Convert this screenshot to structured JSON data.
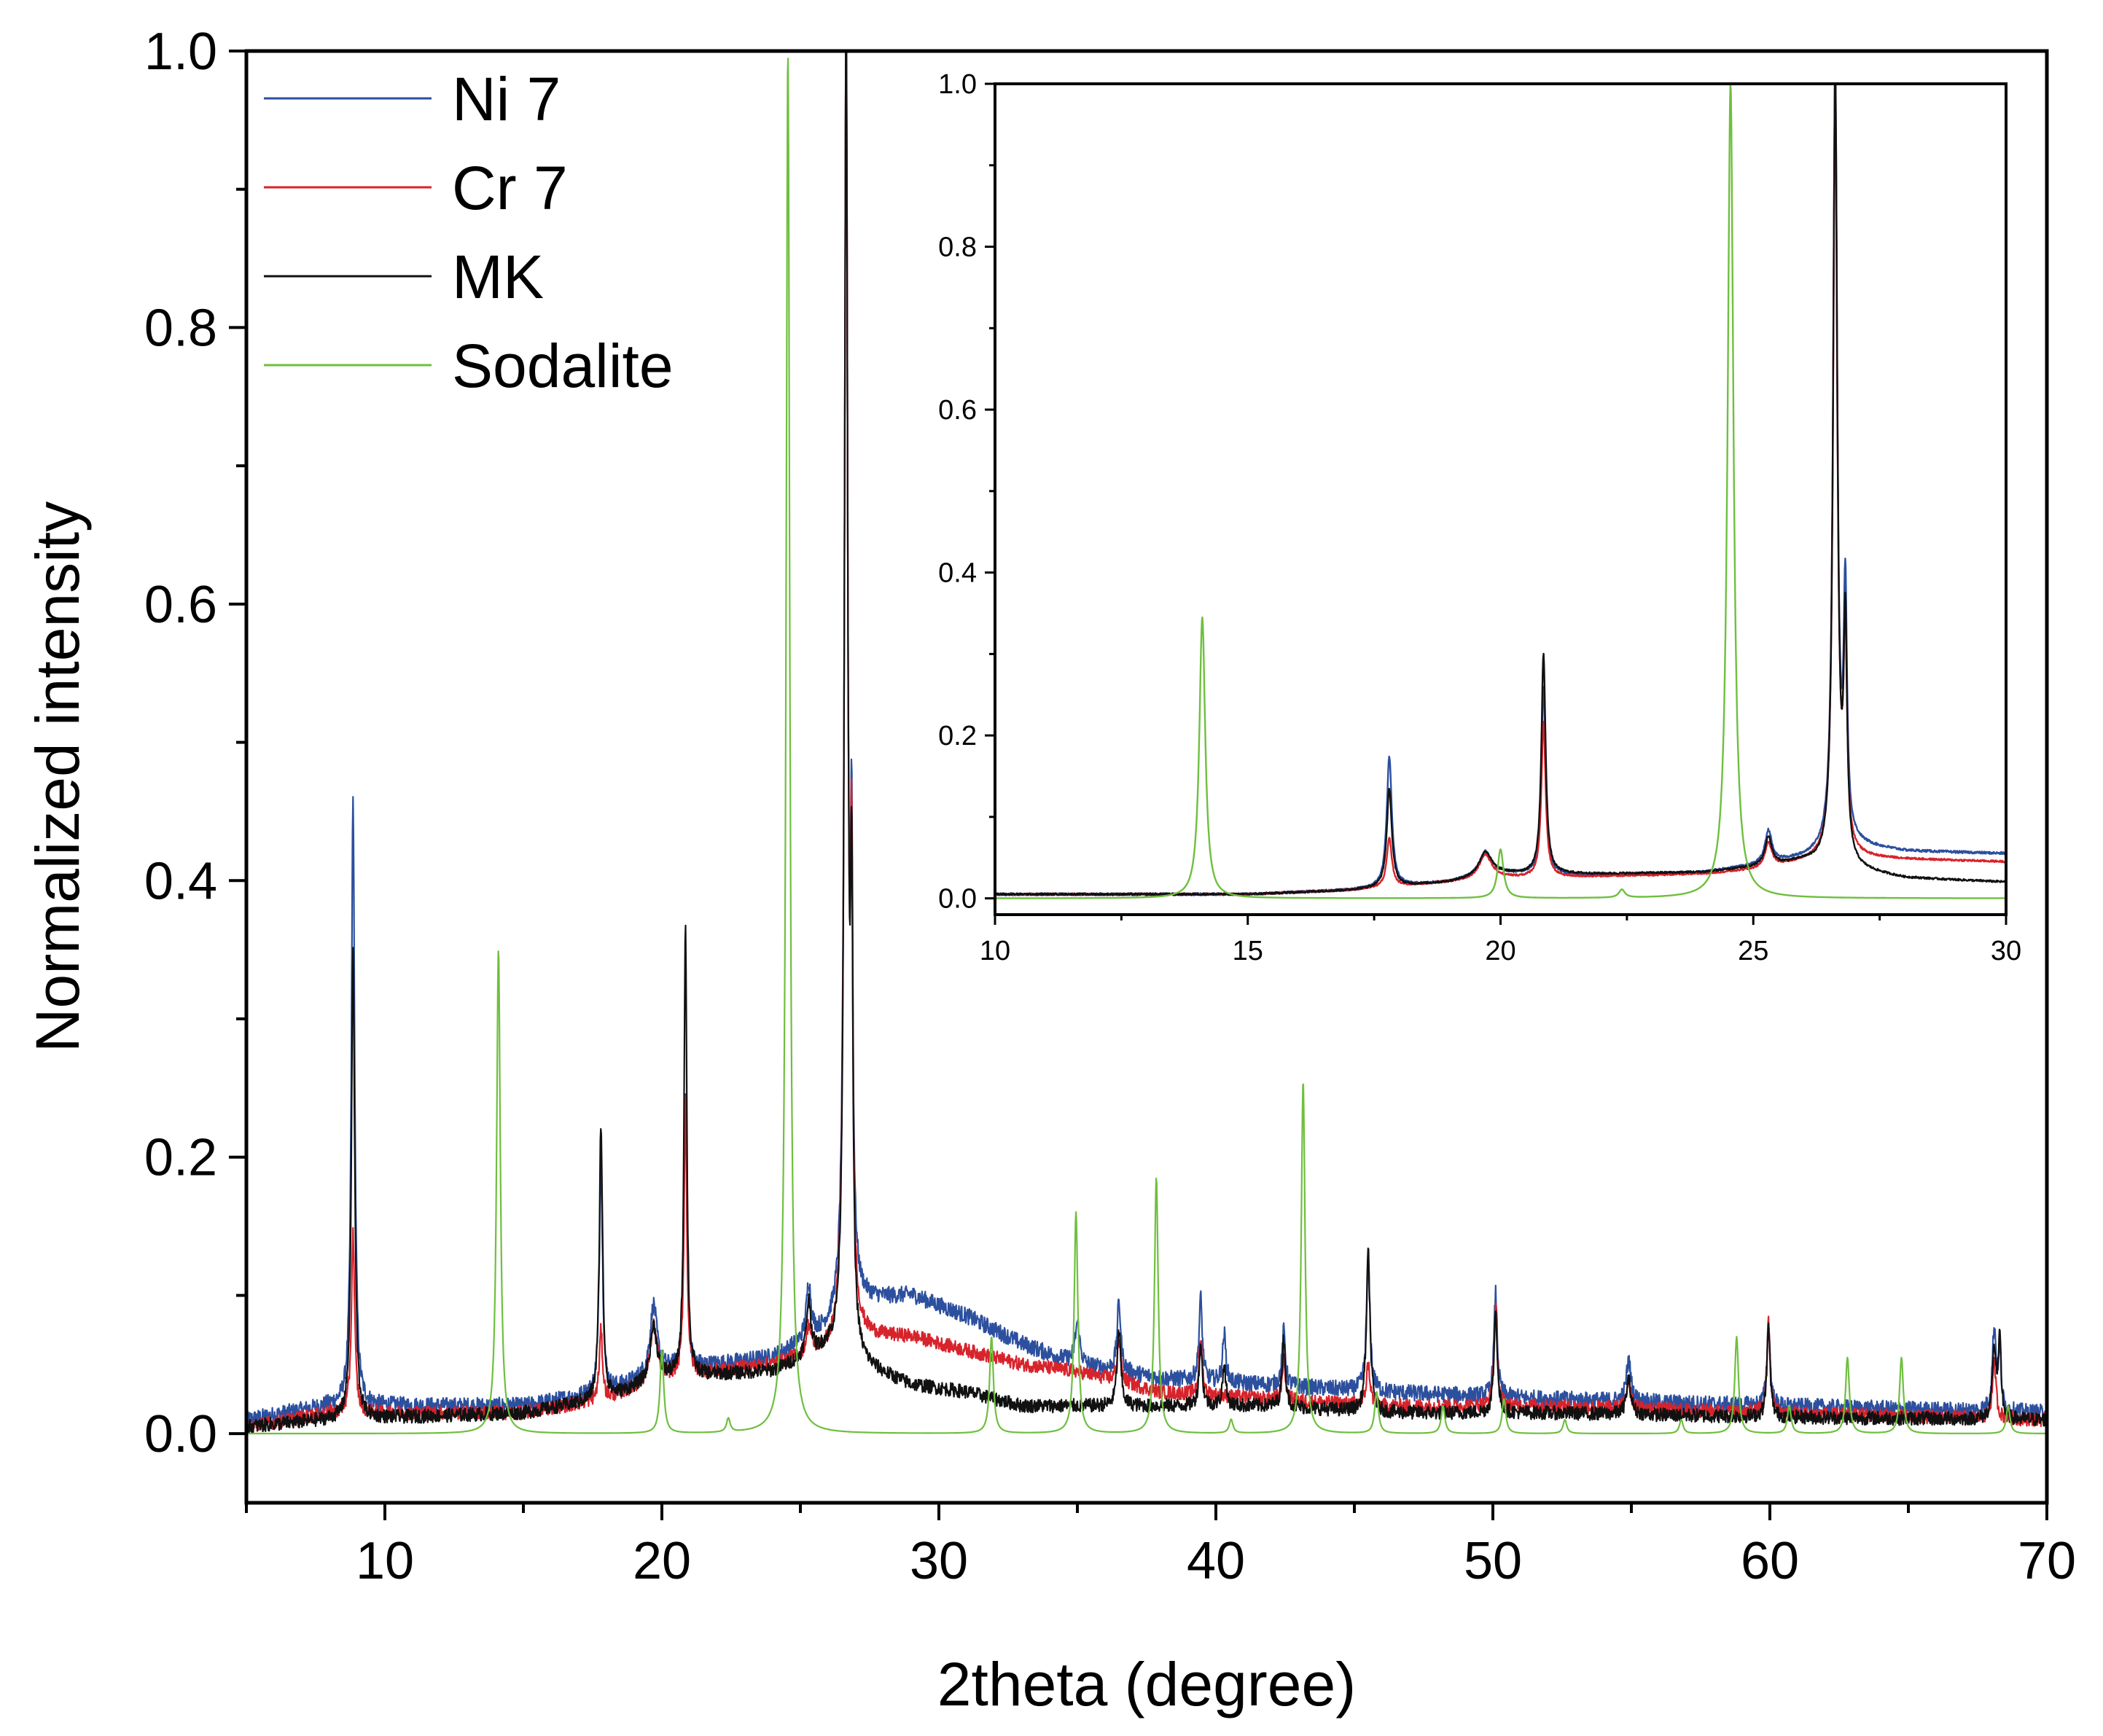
{
  "chart_data": [
    {
      "type": "line",
      "panel": "main",
      "xlabel": "2theta (degree)",
      "ylabel": "Normalized intensity",
      "xlim": [
        5,
        70
      ],
      "ylim": [
        -0.05,
        1.0
      ],
      "x_ticks": [
        "10",
        "20",
        "30",
        "40",
        "50",
        "60",
        "70"
      ],
      "y_ticks": [
        "0.0",
        "0.2",
        "0.4",
        "0.6",
        "0.8",
        "1.0"
      ],
      "legend": {
        "placement": "top-left",
        "entries": [
          {
            "label": "Ni 7",
            "color": "#2c4f9e"
          },
          {
            "label": "Cr 7",
            "color": "#d7232b"
          },
          {
            "label": "MK",
            "color": "#111111"
          },
          {
            "label": "Sodalite",
            "color": "#6fbf3f"
          }
        ]
      },
      "series": [
        {
          "name": "Ni 7",
          "color": "#2c4f9e",
          "baseline": [
            [
              5,
              0.01
            ],
            [
              8,
              0.02
            ],
            [
              15,
              0.02
            ],
            [
              18,
              0.03
            ],
            [
              20,
              0.045
            ],
            [
              24,
              0.055
            ],
            [
              26,
              0.075
            ],
            [
              27,
              0.095
            ],
            [
              29,
              0.1
            ],
            [
              31,
              0.085
            ],
            [
              33,
              0.065
            ],
            [
              35,
              0.05
            ],
            [
              38,
              0.04
            ],
            [
              42,
              0.035
            ],
            [
              46,
              0.03
            ],
            [
              52,
              0.025
            ],
            [
              60,
              0.02
            ],
            [
              70,
              0.015
            ]
          ],
          "peaks": [
            [
              8.85,
              0.44,
              0.07
            ],
            [
              17.8,
              0.17,
              0.07
            ],
            [
              19.7,
              0.05,
              0.15
            ],
            [
              20.85,
              0.2,
              0.06
            ],
            [
              25.3,
              0.04,
              0.1
            ],
            [
              26.65,
              0.92,
              0.07
            ],
            [
              26.85,
              0.3,
              0.05
            ],
            [
              35.0,
              0.03,
              0.1
            ],
            [
              36.5,
              0.05,
              0.08
            ],
            [
              39.45,
              0.06,
              0.07
            ],
            [
              40.3,
              0.035,
              0.07
            ],
            [
              42.45,
              0.04,
              0.07
            ],
            [
              45.5,
              0.09,
              0.08
            ],
            [
              50.1,
              0.075,
              0.07
            ],
            [
              54.9,
              0.03,
              0.1
            ],
            [
              59.95,
              0.06,
              0.07
            ],
            [
              68.1,
              0.06,
              0.08
            ],
            [
              68.3,
              0.04,
              0.06
            ]
          ],
          "noise": 0.006
        },
        {
          "name": "Cr 7",
          "color": "#d7232b",
          "baseline": [
            [
              5,
              0.005
            ],
            [
              8,
              0.015
            ],
            [
              15,
              0.015
            ],
            [
              18,
              0.025
            ],
            [
              20,
              0.04
            ],
            [
              24,
              0.05
            ],
            [
              26,
              0.06
            ],
            [
              27,
              0.07
            ],
            [
              29,
              0.07
            ],
            [
              31,
              0.06
            ],
            [
              33,
              0.05
            ],
            [
              35,
              0.045
            ],
            [
              38,
              0.03
            ],
            [
              42,
              0.025
            ],
            [
              46,
              0.02
            ],
            [
              52,
              0.02
            ],
            [
              60,
              0.015
            ],
            [
              70,
              0.01
            ]
          ],
          "peaks": [
            [
              8.85,
              0.13,
              0.07
            ],
            [
              17.8,
              0.05,
              0.07
            ],
            [
              19.7,
              0.04,
              0.15
            ],
            [
              20.85,
              0.2,
              0.06
            ],
            [
              25.3,
              0.02,
              0.1
            ],
            [
              26.65,
              0.95,
              0.07
            ],
            [
              26.85,
              0.3,
              0.05
            ],
            [
              36.5,
              0.03,
              0.08
            ],
            [
              39.45,
              0.04,
              0.07
            ],
            [
              42.45,
              0.03,
              0.07
            ],
            [
              45.5,
              0.03,
              0.08
            ],
            [
              50.1,
              0.07,
              0.07
            ],
            [
              54.9,
              0.02,
              0.1
            ],
            [
              59.95,
              0.065,
              0.07
            ],
            [
              68.1,
              0.04,
              0.08
            ]
          ],
          "noise": 0.005
        },
        {
          "name": "MK",
          "color": "#111111",
          "baseline": [
            [
              5,
              0.005
            ],
            [
              8,
              0.01
            ],
            [
              15,
              0.015
            ],
            [
              18,
              0.025
            ],
            [
              20,
              0.04
            ],
            [
              24,
              0.045
            ],
            [
              26,
              0.06
            ],
            [
              27,
              0.05
            ],
            [
              29,
              0.035
            ],
            [
              31,
              0.03
            ],
            [
              33,
              0.02
            ],
            [
              35,
              0.02
            ],
            [
              38,
              0.02
            ],
            [
              42,
              0.02
            ],
            [
              46,
              0.015
            ],
            [
              52,
              0.015
            ],
            [
              60,
              0.012
            ],
            [
              70,
              0.01
            ]
          ],
          "peaks": [
            [
              8.85,
              0.34,
              0.07
            ],
            [
              17.8,
              0.2,
              0.07
            ],
            [
              19.7,
              0.04,
              0.15
            ],
            [
              20.85,
              0.33,
              0.06
            ],
            [
              25.3,
              0.04,
              0.1
            ],
            [
              26.65,
              0.97,
              0.07
            ],
            [
              26.85,
              0.3,
              0.05
            ],
            [
              36.5,
              0.055,
              0.08
            ],
            [
              39.45,
              0.045,
              0.07
            ],
            [
              40.3,
              0.03,
              0.07
            ],
            [
              42.45,
              0.05,
              0.07
            ],
            [
              45.5,
              0.115,
              0.08
            ],
            [
              50.1,
              0.075,
              0.07
            ],
            [
              54.9,
              0.025,
              0.1
            ],
            [
              59.95,
              0.065,
              0.07
            ],
            [
              68.1,
              0.05,
              0.08
            ],
            [
              68.3,
              0.055,
              0.06
            ]
          ],
          "noise": 0.005
        },
        {
          "name": "Sodalite",
          "color": "#6fbf3f",
          "baseline": [
            [
              5,
              0
            ],
            [
              70,
              0
            ]
          ],
          "peaks": [
            [
              14.1,
              0.35,
              0.08
            ],
            [
              20.0,
              0.06,
              0.08
            ],
            [
              22.4,
              0.01,
              0.08
            ],
            [
              24.55,
              1.0,
              0.08
            ],
            [
              31.9,
              0.07,
              0.08
            ],
            [
              34.95,
              0.16,
              0.08
            ],
            [
              37.85,
              0.185,
              0.08
            ],
            [
              40.55,
              0.01,
              0.08
            ],
            [
              43.15,
              0.255,
              0.08
            ],
            [
              45.8,
              0.03,
              0.08
            ],
            [
              48.2,
              0.02,
              0.08
            ],
            [
              50.4,
              0.025,
              0.08
            ],
            [
              52.6,
              0.01,
              0.08
            ],
            [
              56.8,
              0.01,
              0.08
            ],
            [
              58.8,
              0.07,
              0.08
            ],
            [
              60.7,
              0.02,
              0.08
            ],
            [
              62.8,
              0.055,
              0.08
            ],
            [
              64.75,
              0.055,
              0.08
            ],
            [
              68.6,
              0.02,
              0.08
            ]
          ],
          "noise": 0
        }
      ]
    },
    {
      "type": "line",
      "panel": "inset",
      "xlabel": "",
      "ylabel": "",
      "xlim": [
        10,
        30
      ],
      "ylim": [
        -0.02,
        1.0
      ],
      "x_ticks": [
        "10",
        "15",
        "20",
        "25",
        "30"
      ],
      "y_ticks": [
        "0.0",
        "0.2",
        "0.4",
        "0.6",
        "0.8",
        "1.0"
      ],
      "series": [
        {
          "name": "Ni 7",
          "color": "#2c4f9e",
          "baseline": [
            [
              10,
              0.005
            ],
            [
              15,
              0.005
            ],
            [
              17,
              0.01
            ],
            [
              19,
              0.02
            ],
            [
              20,
              0.03
            ],
            [
              22,
              0.028
            ],
            [
              24,
              0.032
            ],
            [
              25,
              0.04
            ],
            [
              26,
              0.05
            ],
            [
              27,
              0.065
            ],
            [
              28,
              0.058
            ],
            [
              30,
              0.055
            ]
          ],
          "peaks": [
            [
              17.8,
              0.16,
              0.06
            ],
            [
              19.7,
              0.03,
              0.15
            ],
            [
              20.85,
              0.23,
              0.05
            ],
            [
              25.3,
              0.04,
              0.08
            ],
            [
              26.62,
              0.95,
              0.05
            ],
            [
              26.82,
              0.3,
              0.04
            ]
          ],
          "noise": 0.0015
        },
        {
          "name": "Cr 7",
          "color": "#d7232b",
          "baseline": [
            [
              10,
              0.005
            ],
            [
              15,
              0.005
            ],
            [
              17,
              0.01
            ],
            [
              19,
              0.02
            ],
            [
              20,
              0.025
            ],
            [
              22,
              0.027
            ],
            [
              24,
              0.03
            ],
            [
              25,
              0.035
            ],
            [
              26,
              0.045
            ],
            [
              27,
              0.05
            ],
            [
              28,
              0.048
            ],
            [
              30,
              0.045
            ]
          ],
          "peaks": [
            [
              17.8,
              0.06,
              0.06
            ],
            [
              19.7,
              0.03,
              0.15
            ],
            [
              20.85,
              0.19,
              0.05
            ],
            [
              25.3,
              0.03,
              0.08
            ],
            [
              26.62,
              0.93,
              0.05
            ],
            [
              26.82,
              0.26,
              0.04
            ]
          ],
          "noise": 0.0012
        },
        {
          "name": "MK",
          "color": "#111111",
          "baseline": [
            [
              10,
              0.005
            ],
            [
              15,
              0.005
            ],
            [
              17,
              0.01
            ],
            [
              19,
              0.02
            ],
            [
              20,
              0.03
            ],
            [
              22,
              0.03
            ],
            [
              24,
              0.032
            ],
            [
              25,
              0.038
            ],
            [
              26,
              0.045
            ],
            [
              27,
              0.035
            ],
            [
              28,
              0.025
            ],
            [
              30,
              0.02
            ]
          ],
          "peaks": [
            [
              17.8,
              0.12,
              0.06
            ],
            [
              19.7,
              0.03,
              0.15
            ],
            [
              20.85,
              0.27,
              0.05
            ],
            [
              25.3,
              0.035,
              0.08
            ],
            [
              26.62,
              0.98,
              0.05
            ],
            [
              26.82,
              0.28,
              0.04
            ]
          ],
          "noise": 0.0012
        },
        {
          "name": "Sodalite",
          "color": "#6fbf3f",
          "baseline": [
            [
              10,
              0
            ],
            [
              30,
              0
            ]
          ],
          "peaks": [
            [
              14.1,
              0.345,
              0.07
            ],
            [
              20.0,
              0.06,
              0.07
            ],
            [
              22.4,
              0.01,
              0.07
            ],
            [
              24.55,
              1.0,
              0.07
            ]
          ],
          "noise": 0
        }
      ]
    }
  ]
}
